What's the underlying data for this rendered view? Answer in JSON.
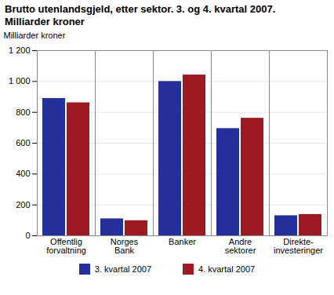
{
  "chart_data": {
    "type": "bar",
    "title": "Brutto utenlandsgjeld, etter sektor. 3. og 4. kvartal 2007.\nMilliarder kroner",
    "ylabel": "Milliarder kroner",
    "categories": [
      "Offentlig\nforvaltning",
      "Norges\nBank",
      "Banker",
      "Andre\nsektorer",
      "Direkte-\ninvesteringer"
    ],
    "series": [
      {
        "name": "3. kvartal 2007",
        "color": "#25309b",
        "values": [
          890,
          110,
          1000,
          695,
          130
        ]
      },
      {
        "name": "4. kvartal 2007",
        "color": "#9e1a22",
        "values": [
          862,
          98,
          1042,
          762,
          138
        ]
      }
    ],
    "ylim": [
      0,
      1200
    ],
    "yticks": [
      0,
      200,
      400,
      600,
      800,
      {
        "value": 1000,
        "label": "1 000"
      },
      {
        "value": 1200,
        "label": "1 200"
      }
    ],
    "grid": true,
    "legend": "bottom"
  }
}
